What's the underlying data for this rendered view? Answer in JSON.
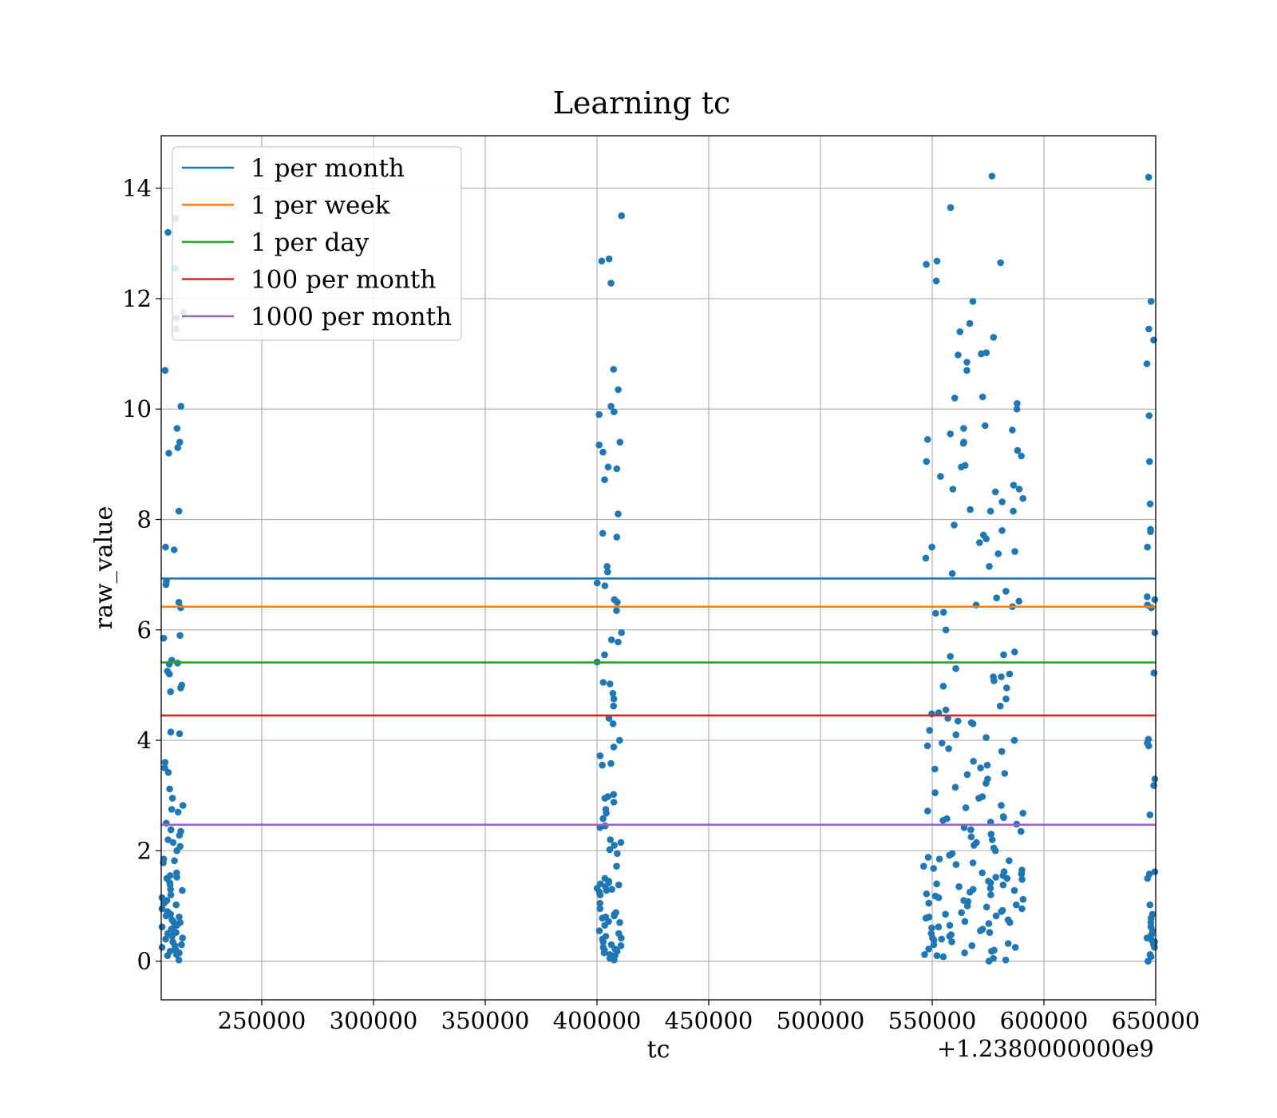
{
  "chart_data": {
    "type": "scatter",
    "title": "Learning tc",
    "xlabel": "tc",
    "ylabel": "raw_value",
    "x_offset_label": "+1.2380000000e9",
    "xlim": [
      205000,
      650000
    ],
    "ylim": [
      -0.7,
      14.95
    ],
    "x_ticks": [
      250000,
      300000,
      350000,
      400000,
      450000,
      500000,
      550000,
      600000,
      650000
    ],
    "x_tick_labels": [
      "250000",
      "300000",
      "350000",
      "400000",
      "450000",
      "500000",
      "550000",
      "600000",
      "650000"
    ],
    "y_ticks": [
      0,
      2,
      4,
      6,
      8,
      10,
      12,
      14
    ],
    "y_tick_labels": [
      "0",
      "2",
      "4",
      "6",
      "8",
      "10",
      "12",
      "14"
    ],
    "grid": true,
    "legend_position": "top-left",
    "hlines": [
      {
        "name": "1 per month",
        "y": 6.93,
        "color": "#1f77b4"
      },
      {
        "name": "1 per week",
        "y": 6.42,
        "color": "#ff7f0e"
      },
      {
        "name": "1 per day",
        "y": 5.41,
        "color": "#2ca02c"
      },
      {
        "name": "100 per month",
        "y": 4.45,
        "color": "#d62728"
      },
      {
        "name": "1000 per month",
        "y": 2.47,
        "color": "#9467bd"
      }
    ],
    "scatter_color": "#1f77b4",
    "clusters": [
      {
        "x_range": [
          205000,
          215000
        ],
        "values": [
          13.45,
          13.2,
          12.55,
          11.75,
          11.65,
          11.45,
          10.7,
          10.05,
          9.65,
          9.4,
          9.3,
          9.2,
          8.15,
          7.5,
          7.45,
          6.88,
          6.82,
          6.5,
          6.4,
          5.9,
          5.85,
          5.45,
          5.4,
          5.38,
          5.25,
          5.2,
          5.0,
          4.95,
          4.88,
          4.15,
          4.12,
          3.6,
          3.5,
          3.42,
          3.12,
          2.95,
          2.82,
          2.75,
          2.7,
          2.5,
          2.38,
          2.35,
          2.28,
          2.2,
          2.15,
          2.08,
          2.0,
          1.85,
          1.82,
          1.78,
          1.6,
          1.55,
          1.52,
          1.5,
          1.42,
          1.38,
          1.3,
          1.28,
          1.2,
          1.15,
          1.1,
          1.05,
          1.02,
          0.95,
          0.9,
          0.88,
          0.85,
          0.82,
          0.8,
          0.75,
          0.72,
          0.7,
          0.68,
          0.65,
          0.62,
          0.6,
          0.58,
          0.55,
          0.52,
          0.5,
          0.45,
          0.42,
          0.4,
          0.35,
          0.3,
          0.28,
          0.25,
          0.22,
          0.2,
          0.18,
          0.15,
          0.12,
          0.1,
          0.02
        ]
      },
      {
        "x_range": [
          400000,
          411000
        ],
        "values": [
          13.5,
          12.72,
          12.68,
          12.28,
          10.72,
          10.35,
          10.05,
          9.95,
          9.9,
          9.4,
          9.35,
          9.22,
          8.95,
          8.92,
          8.72,
          8.1,
          7.75,
          7.68,
          7.15,
          7.05,
          6.85,
          6.8,
          6.55,
          6.5,
          6.35,
          5.95,
          5.82,
          5.78,
          5.55,
          5.42,
          5.05,
          5.02,
          4.85,
          4.75,
          4.62,
          4.4,
          4.3,
          4.0,
          3.88,
          3.72,
          3.58,
          3.55,
          3.02,
          2.98,
          2.95,
          2.88,
          2.75,
          2.68,
          2.58,
          2.45,
          2.42,
          2.2,
          2.15,
          2.1,
          2.02,
          1.95,
          1.72,
          1.5,
          1.45,
          1.42,
          1.4,
          1.38,
          1.35,
          1.32,
          1.3,
          1.28,
          1.25,
          1.2,
          1.05,
          0.95,
          0.88,
          0.85,
          0.82,
          0.8,
          0.78,
          0.72,
          0.7,
          0.65,
          0.55,
          0.5,
          0.45,
          0.42,
          0.4,
          0.35,
          0.3,
          0.28,
          0.25,
          0.22,
          0.2,
          0.18,
          0.15,
          0.12,
          0.1,
          0.05,
          0.02
        ]
      },
      {
        "x_range": [
          546000,
          591000
        ],
        "values": [
          14.22,
          13.65,
          12.68,
          12.65,
          12.62,
          12.32,
          11.95,
          11.55,
          11.4,
          11.3,
          11.02,
          11.0,
          10.98,
          10.85,
          10.7,
          10.22,
          10.2,
          10.1,
          10.0,
          9.7,
          9.65,
          9.62,
          9.55,
          9.45,
          9.4,
          9.38,
          9.25,
          9.15,
          9.05,
          8.98,
          8.95,
          8.78,
          8.62,
          8.55,
          8.55,
          8.5,
          8.38,
          8.32,
          8.18,
          8.15,
          8.15,
          7.9,
          7.8,
          7.72,
          7.65,
          7.58,
          7.5,
          7.42,
          7.38,
          7.3,
          7.15,
          7.02,
          6.7,
          6.58,
          6.52,
          6.45,
          6.42,
          6.32,
          6.3,
          6.0,
          5.6,
          5.55,
          5.52,
          5.3,
          5.2,
          5.15,
          5.15,
          5.08,
          4.98,
          4.95,
          4.75,
          4.62,
          4.55,
          4.5,
          4.48,
          4.4,
          4.35,
          4.32,
          4.3,
          4.18,
          4.1,
          4.05,
          4.0,
          3.95,
          3.9,
          3.85,
          3.8,
          3.62,
          3.55,
          3.5,
          3.48,
          3.4,
          3.38,
          3.3,
          3.22,
          3.15,
          3.05,
          2.98,
          2.95,
          2.82,
          2.78,
          2.72,
          2.68,
          2.62,
          2.6,
          2.58,
          2.55,
          2.52,
          2.48,
          2.42,
          2.38,
          2.35,
          2.3,
          2.25,
          2.2,
          2.15,
          2.1,
          2.05,
          2.0,
          1.95,
          1.92,
          1.88,
          1.85,
          1.82,
          1.78,
          1.75,
          1.72,
          1.68,
          1.65,
          1.62,
          1.6,
          1.58,
          1.55,
          1.52,
          1.5,
          1.48,
          1.45,
          1.42,
          1.4,
          1.38,
          1.35,
          1.32,
          1.3,
          1.28,
          1.25,
          1.22,
          1.2,
          1.18,
          1.15,
          1.12,
          1.1,
          1.08,
          1.05,
          1.02,
          1.0,
          0.98,
          0.95,
          0.92,
          0.9,
          0.88,
          0.85,
          0.82,
          0.8,
          0.78,
          0.75,
          0.72,
          0.7,
          0.68,
          0.65,
          0.62,
          0.6,
          0.58,
          0.55,
          0.52,
          0.5,
          0.48,
          0.45,
          0.42,
          0.4,
          0.38,
          0.35,
          0.32,
          0.3,
          0.28,
          0.25,
          0.22,
          0.2,
          0.18,
          0.15,
          0.12,
          0.1,
          0.08,
          0.05,
          0.02,
          0.0
        ]
      },
      {
        "x_range": [
          646000,
          650000
        ],
        "values": [
          14.2,
          11.95,
          11.45,
          11.25,
          10.82,
          9.88,
          9.05,
          8.28,
          7.82,
          7.78,
          7.5,
          6.6,
          6.55,
          6.45,
          6.4,
          5.95,
          5.22,
          4.02,
          3.95,
          3.9,
          3.3,
          3.18,
          2.65,
          1.62,
          1.58,
          1.5,
          1.02,
          0.85,
          0.78,
          0.7,
          0.62,
          0.55,
          0.48,
          0.42,
          0.38,
          0.35,
          0.3,
          0.25,
          0.12,
          0.08,
          0.0
        ]
      }
    ]
  }
}
